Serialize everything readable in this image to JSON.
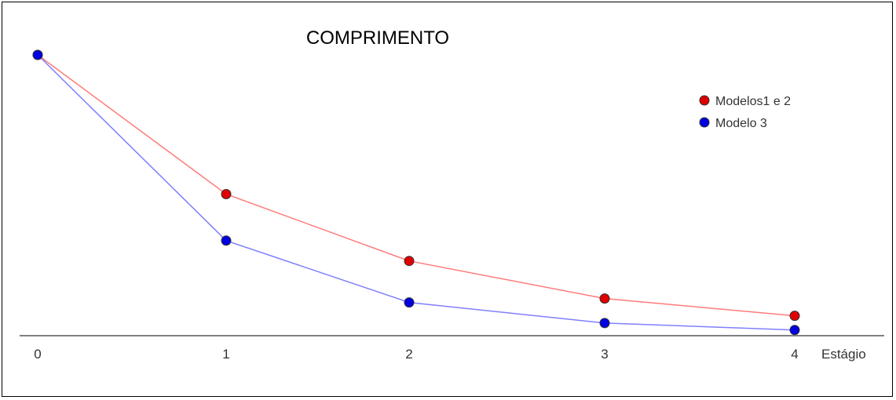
{
  "chart_data": {
    "type": "line",
    "title": "COMPRIMENTO",
    "xlabel": "Estágio",
    "ylabel": "",
    "x": [
      0,
      1,
      2,
      3,
      4
    ],
    "tick_labels": [
      "0",
      "1",
      "2",
      "3",
      "4"
    ],
    "ylim": [
      0,
      1
    ],
    "grid": false,
    "legend_position": "top-right",
    "series": [
      {
        "name": "Modelos1 e 2",
        "values": [
          1.0,
          0.5,
          0.26,
          0.125,
          0.063
        ],
        "line_color": "#ff7b7b",
        "marker_color": "#e00000"
      },
      {
        "name": "Modelo 3",
        "values": [
          1.0,
          0.333,
          0.111,
          0.037,
          0.012
        ],
        "line_color": "#7f7fff",
        "marker_color": "#0000e0"
      }
    ]
  }
}
